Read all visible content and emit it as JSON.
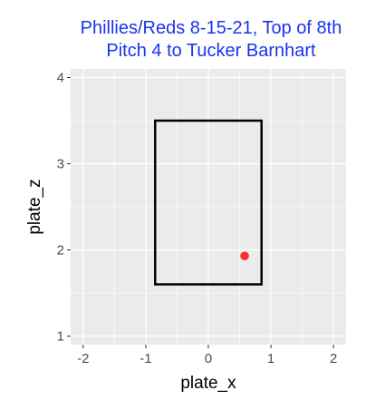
{
  "chart_data": {
    "type": "scatter",
    "title_lines": [
      "Phillies/Reds 8-15-21, Top of 8th",
      "Pitch 4 to Tucker Barnhart"
    ],
    "xlabel": "plate_x",
    "ylabel": "plate_z",
    "xlim": [
      -2.2,
      2.2
    ],
    "ylim": [
      0.9,
      4.1
    ],
    "x_ticks": [
      -2,
      -1,
      0,
      1,
      2
    ],
    "y_ticks": [
      1,
      2,
      3,
      4
    ],
    "grid": true,
    "legend": "none",
    "strike_zone": {
      "x": [
        -0.85,
        0.85
      ],
      "z": [
        1.6,
        3.5
      ]
    },
    "points": [
      {
        "x": 0.58,
        "z": 1.93,
        "color": "#f8312f"
      }
    ],
    "colors": {
      "panel_background": "#ebebeb",
      "grid": "#ffffff",
      "title": "#1a33f0",
      "zone": "#000000"
    }
  }
}
